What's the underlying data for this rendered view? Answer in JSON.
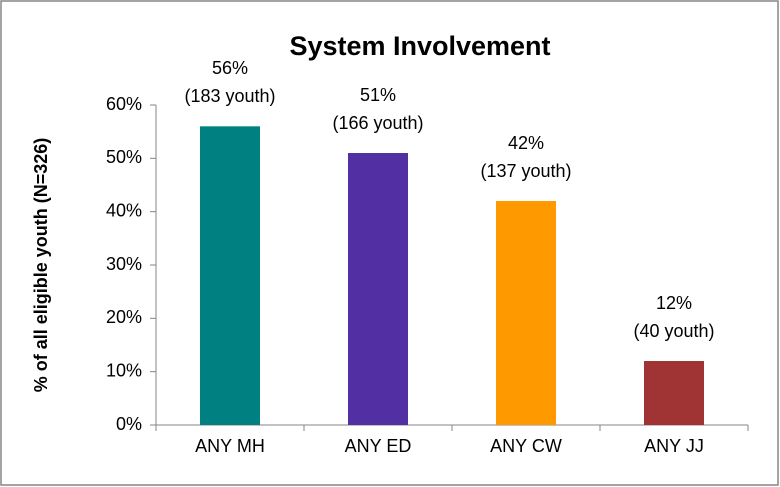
{
  "chart_data": {
    "type": "bar",
    "title": "System Involvement",
    "y_label": "% of all eligible youth (N=326)",
    "categories": [
      "ANY MH",
      "ANY ED",
      "ANY CW",
      "ANY JJ"
    ],
    "values": [
      56,
      51,
      42,
      12
    ],
    "value_labels": [
      "56%",
      "51%",
      "42%",
      "12%"
    ],
    "youth_labels": [
      "(183 youth)",
      "(166 youth)",
      "(137 youth)",
      "(40 youth)"
    ],
    "colors": [
      "#008080",
      "#5230a4",
      "#ff9900",
      "#a03333"
    ],
    "ylim": [
      0,
      60
    ],
    "yticks": [
      {
        "value": 0,
        "label": "0%"
      },
      {
        "value": 10,
        "label": "10%"
      },
      {
        "value": 20,
        "label": "20%"
      },
      {
        "value": 30,
        "label": "30%"
      },
      {
        "value": 40,
        "label": "40%"
      },
      {
        "value": 50,
        "label": "50%"
      },
      {
        "value": 60,
        "label": "60%"
      }
    ],
    "grid": false
  }
}
